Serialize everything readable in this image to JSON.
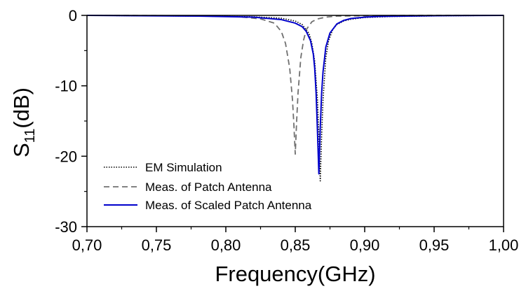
{
  "chart_data": {
    "type": "line",
    "title": "",
    "xlabel": "Frequency(GHz)",
    "ylabel_main": "S",
    "ylabel_sub": "11",
    "ylabel_unit": "(dB)",
    "xlim": [
      0.7,
      1.0
    ],
    "ylim": [
      -30,
      0
    ],
    "xticks": [
      0.7,
      0.75,
      0.8,
      0.85,
      0.9,
      0.95,
      1.0
    ],
    "xtick_labels": [
      "0,70",
      "0,75",
      "0,80",
      "0,85",
      "0,90",
      "0,95",
      "1,00"
    ],
    "yticks": [
      0,
      -10,
      -20,
      -30
    ],
    "ytick_labels": [
      "0",
      "-10",
      "-20",
      "-30"
    ],
    "grid": false,
    "legend_position": "bottom-left",
    "series": [
      {
        "name": "EM Simulation",
        "style": "dotted",
        "color": "#000000",
        "x": [
          0.7,
          0.78,
          0.82,
          0.84,
          0.85,
          0.855,
          0.86,
          0.862,
          0.864,
          0.866,
          0.867,
          0.868,
          0.869,
          0.87,
          0.872,
          0.874,
          0.877,
          0.88,
          0.885,
          0.89,
          0.9,
          0.92,
          0.96,
          1.0
        ],
        "y": [
          0.0,
          -0.1,
          -0.2,
          -0.4,
          -0.8,
          -1.3,
          -2.6,
          -4.0,
          -6.5,
          -12.0,
          -17.0,
          -23.5,
          -17.0,
          -12.0,
          -6.0,
          -3.6,
          -2.0,
          -1.3,
          -0.8,
          -0.55,
          -0.3,
          -0.15,
          -0.05,
          0.0
        ]
      },
      {
        "name": "Meas. of Patch Antenna",
        "style": "dashed",
        "color": "#707070",
        "x": [
          0.7,
          0.78,
          0.81,
          0.825,
          0.835,
          0.84,
          0.843,
          0.846,
          0.848,
          0.849,
          0.85,
          0.851,
          0.852,
          0.854,
          0.856,
          0.858,
          0.862,
          0.866,
          0.872,
          0.88,
          0.9,
          0.95,
          1.0
        ],
        "y": [
          0.0,
          -0.05,
          -0.2,
          -0.5,
          -1.1,
          -2.3,
          -4.0,
          -7.5,
          -12.0,
          -15.5,
          -19.7,
          -15.0,
          -11.0,
          -6.0,
          -3.5,
          -2.0,
          -0.9,
          -0.5,
          -0.25,
          -0.1,
          -0.05,
          0.0,
          0.0
        ]
      },
      {
        "name": "Meas. of Scaled Patch Antenna",
        "style": "solid",
        "color": "#0000cc",
        "x": [
          0.7,
          0.78,
          0.82,
          0.84,
          0.85,
          0.855,
          0.858,
          0.861,
          0.863,
          0.864,
          0.865,
          0.866,
          0.867,
          0.868,
          0.869,
          0.87,
          0.872,
          0.875,
          0.88,
          0.885,
          0.89,
          0.9,
          0.91,
          0.95,
          1.0
        ],
        "y": [
          0.0,
          -0.1,
          -0.25,
          -0.6,
          -1.1,
          -1.6,
          -2.3,
          -3.6,
          -5.5,
          -7.5,
          -11.0,
          -16.5,
          -22.5,
          -16.0,
          -11.0,
          -8.0,
          -4.5,
          -2.5,
          -1.2,
          -0.7,
          -0.45,
          -0.25,
          -0.15,
          -0.05,
          0.0
        ]
      }
    ]
  }
}
